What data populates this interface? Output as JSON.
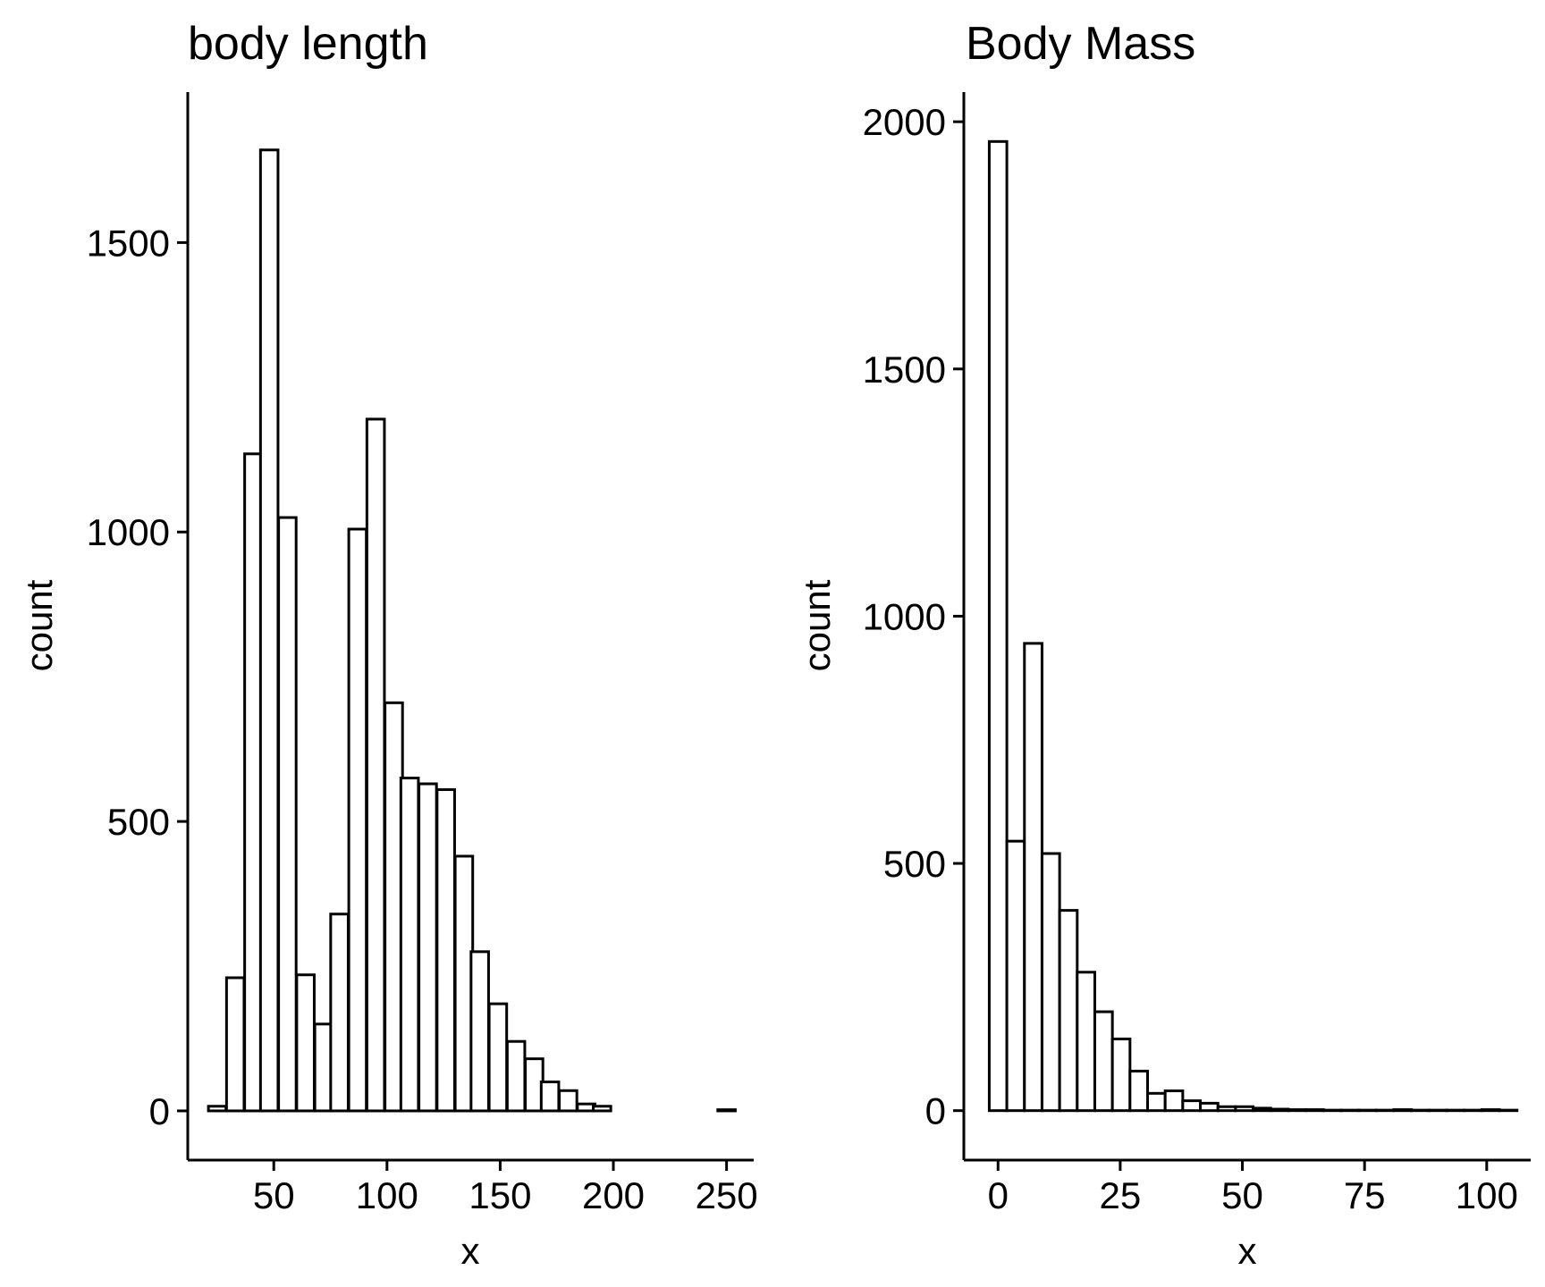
{
  "chart_data": [
    {
      "type": "bar",
      "title": "body length",
      "xlabel": "x",
      "ylabel": "count",
      "xlim": [
        12,
        262
      ],
      "ylim": [
        -85,
        1760
      ],
      "x_ticks": [
        50,
        100,
        150,
        200,
        250
      ],
      "y_ticks": [
        0,
        500,
        1000,
        1500
      ],
      "bin_width": 7.74,
      "bin_centers": [
        25,
        33,
        41,
        48,
        56,
        64,
        72,
        79,
        87,
        95,
        103,
        110,
        118,
        126,
        134,
        141,
        149,
        157,
        165,
        172,
        180,
        188,
        195,
        203,
        211,
        219,
        226,
        234,
        242,
        250
      ],
      "values": [
        8,
        230,
        1135,
        1660,
        1025,
        235,
        150,
        340,
        1005,
        1195,
        705,
        575,
        565,
        555,
        440,
        275,
        185,
        120,
        90,
        50,
        35,
        12,
        8,
        0,
        0,
        0,
        0,
        0,
        0,
        2
      ],
      "grid": false
    },
    {
      "type": "bar",
      "title": "Body Mass",
      "xlabel": "x",
      "ylabel": "count",
      "xlim": [
        -7,
        109
      ],
      "ylim": [
        -100,
        2060
      ],
      "x_ticks": [
        0,
        25,
        50,
        75,
        100
      ],
      "y_ticks": [
        0,
        500,
        1000,
        1500,
        2000
      ],
      "bin_width": 3.6,
      "bin_centers": [
        0,
        3.6,
        7.2,
        10.8,
        14.4,
        18,
        21.6,
        25.2,
        28.8,
        32.4,
        36,
        39.6,
        43.2,
        46.8,
        50.4,
        54,
        57.6,
        61.2,
        64.8,
        68.4,
        72,
        75.6,
        79.2,
        82.8,
        86.4,
        90,
        93.6,
        97.2,
        100.8,
        104.4
      ],
      "values": [
        1960,
        545,
        945,
        520,
        405,
        280,
        200,
        145,
        80,
        35,
        40,
        20,
        15,
        8,
        8,
        5,
        3,
        2,
        2,
        1,
        1,
        1,
        1,
        2,
        1,
        1,
        1,
        1,
        2,
        1
      ],
      "grid": false
    }
  ],
  "colors": {
    "bar_fill": "#ffffff",
    "bar_stroke": "#000000",
    "axis": "#000000"
  }
}
